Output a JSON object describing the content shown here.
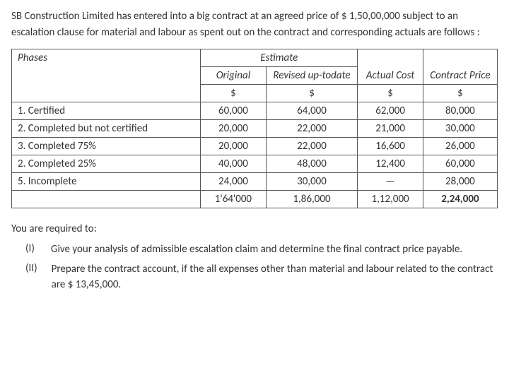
{
  "intro": "SB Construction Limited has entered into a big contract at an agreed price of $ 1,50,00,000 subject to an escalation clause for material and labour as spent out on the contract and corresponding actuals are follows :",
  "table": {
    "headers": {
      "phases": "Phases",
      "estimate": "Estimate",
      "original": "Original",
      "revised": "Revised up-todate",
      "actual": "Actual Cost",
      "contract": "Contract Price",
      "unit": "$"
    },
    "rows": [
      {
        "label": "1. Certified",
        "original": "60,000",
        "revised": "64,000",
        "actual": "62,000",
        "contract": "80,000"
      },
      {
        "label": "2. Completed but not certified",
        "original": "20,000",
        "revised": "22,000",
        "actual": "21,000",
        "contract": "30,000"
      },
      {
        "label": "3. Completed 75%",
        "original": "20,000",
        "revised": "22,000",
        "actual": "16,600",
        "contract": "26,000"
      },
      {
        "label": "2.  Completed 25%",
        "original": "40,000",
        "revised": "48,000",
        "actual": "12,400",
        "contract": "60,000"
      },
      {
        "label": "5. Incomplete",
        "original": "24,000",
        "revised": "30,000",
        "actual": "—",
        "contract": "28,000"
      }
    ],
    "totals": {
      "label": "",
      "original": "1'64'000",
      "revised": "1,86,000",
      "actual": "1,12,000",
      "contract": "2,24,000"
    }
  },
  "requirements": {
    "title": "You are required to:",
    "items": [
      {
        "num": "(I)",
        "text": "Give your analysis of admissible escalation claim and determine the final contract price payable."
      },
      {
        "num": "(II)",
        "text": "Prepare the contract account, if the all expenses other than material and labour related to the contract are $ 13,45,000."
      }
    ]
  }
}
